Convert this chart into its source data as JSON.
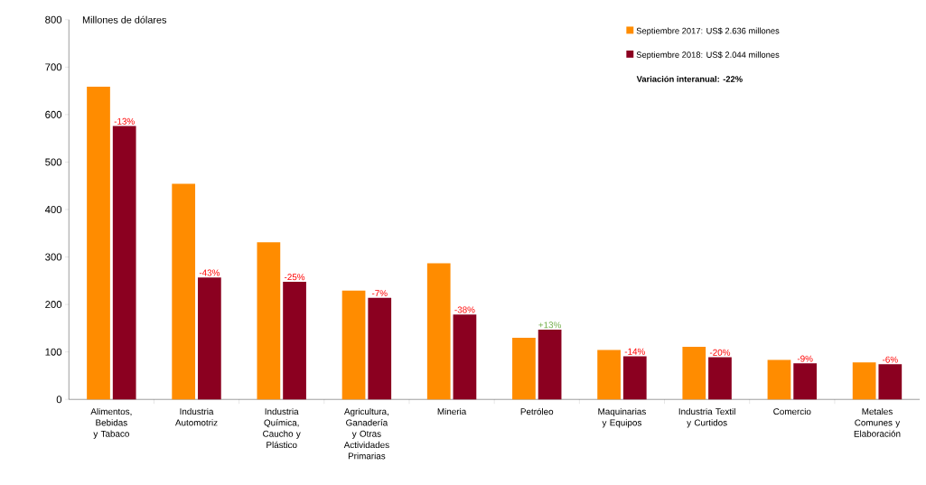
{
  "chart_data": {
    "type": "bar",
    "ylabel": "Millones de dólares",
    "categories": [
      "Alimentos, Bebidas y Tabaco",
      "Industria Automotriz",
      "Industria Química, Caucho y Plástico",
      "Agricultura, Ganadería y Otras Actividades Primarias",
      "Mineria",
      "Petróleo",
      "Maquinarias y Equipos",
      "Industria Textil y Curtidos",
      "Comercio",
      "Metales Comunes y Elaboración"
    ],
    "series": [
      {
        "name": "Septiembre 2017: US$ 2.636 millones",
        "color": "#ff8c00",
        "values": [
          659,
          454,
          331,
          229,
          287,
          130,
          104,
          111,
          83,
          78
        ]
      },
      {
        "name": "Septiembre 2018: US$ 2.044 millones",
        "color": "#8b0020",
        "values": [
          576,
          257,
          248,
          214,
          179,
          147,
          91,
          89,
          76,
          74
        ]
      }
    ],
    "ylim": [
      0,
      800
    ],
    "yticks": [
      0,
      100,
      200,
      300,
      400,
      500,
      600,
      700,
      800
    ],
    "legend": "top right",
    "grid": false,
    "annotations": [
      "Variación interanual: -22%",
      {
        "text": "-13%",
        "x": "Alimentos, Bebidas y Tabaco",
        "y": 576
      },
      {
        "text": "-43%",
        "x": "Industria Automotriz",
        "y": 257
      },
      {
        "text": "-25%",
        "x": "Industria Química, Caucho y Plástico",
        "y": 248
      },
      {
        "text": "-7%",
        "x": "Agricultura, Ganadería y Otras Actividades Primarias",
        "y": 214
      },
      {
        "text": "-38%",
        "x": "Mineria",
        "y": 179
      },
      {
        "text": "+13%",
        "x": "Petróleo",
        "y": 147
      },
      {
        "text": "-14%",
        "x": "Maquinarias y Equipos",
        "y": 91
      },
      {
        "text": "-20%",
        "x": "Industria Textil y Curtidos",
        "y": 89
      },
      {
        "text": "-9%",
        "x": "Comercio",
        "y": 76
      },
      {
        "text": "-6%",
        "x": "Metales Comunes y Elaboración",
        "y": 74
      }
    ]
  }
}
